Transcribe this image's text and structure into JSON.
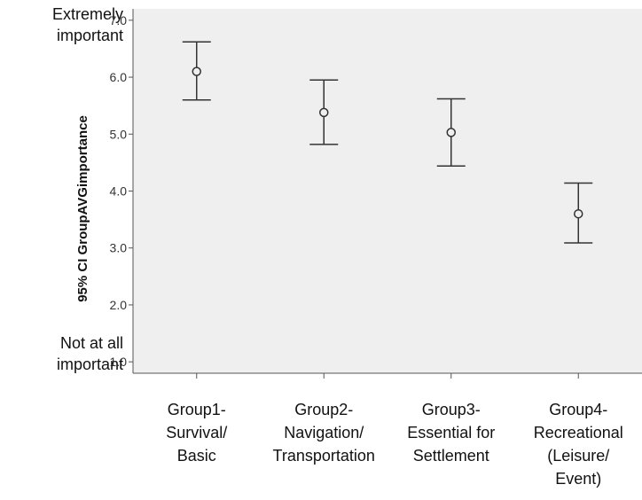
{
  "chart_data": {
    "type": "errorbar",
    "ylabel": "95% CI GroupAVGimportance",
    "ylim": [
      0.8,
      7.2
    ],
    "yticks": [
      "1.0",
      "2.0",
      "3.0",
      "4.0",
      "5.0",
      "6.0",
      "7.0"
    ],
    "y_anchor_labels": {
      "top": [
        "Extremely",
        "important"
      ],
      "bottom": [
        "Not at all",
        "important"
      ]
    },
    "categories": [
      [
        "Group1-",
        "Survival/",
        "Basic"
      ],
      [
        "Group2-",
        "Navigation/",
        "Transportation"
      ],
      [
        "Group3-",
        "Essential for",
        "Settlement"
      ],
      [
        "Group4-",
        "Recreational",
        "(Leisure/",
        "Event)"
      ]
    ],
    "points": [
      {
        "mean": 6.1,
        "lower": 5.6,
        "upper": 6.62
      },
      {
        "mean": 5.38,
        "lower": 4.82,
        "upper": 5.95
      },
      {
        "mean": 5.03,
        "lower": 4.44,
        "upper": 5.62
      },
      {
        "mean": 3.6,
        "lower": 3.09,
        "upper": 4.14
      }
    ],
    "grid": false,
    "colors": {
      "plot_bg": "#efefef",
      "marker": "#333333",
      "axis": "#555555"
    }
  }
}
